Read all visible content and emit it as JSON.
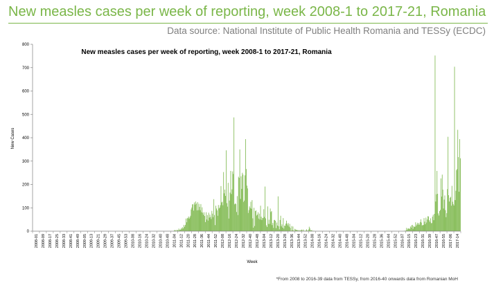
{
  "header": {
    "title": "New measles cases per week of reporting, week 2008-1 to 2017-21, Romania",
    "source": "Data source: National Institute of Public Health Romania and TESSy (ECDC)"
  },
  "footnote": "*From 2008 to 2016-39 data from TESSy, from 2016-40 onwards data from Romanian MoH",
  "colors": {
    "title": "#7ab648",
    "bars": "#7ab648",
    "axis": "#808080",
    "source": "#7f7f7f"
  },
  "chart_data": {
    "type": "bar",
    "title": "New measles cases per week of reporting, week 2008-1 to 2017-21, Romania",
    "xlabel": "Week",
    "ylabel": "New Cases",
    "ylim": [
      0,
      800
    ],
    "yticks": [
      0,
      100,
      200,
      300,
      400,
      500,
      600,
      700,
      800
    ],
    "grid": false,
    "legend": "none",
    "x_start": "2008-01",
    "x_end": "2017-21",
    "x_tick_labels": [
      "2008-01",
      "2008-09",
      "2008-17",
      "2008-25",
      "2008-33",
      "2008-41",
      "2008-49",
      "2009-05",
      "2009-13",
      "2009-21",
      "2009-29",
      "2009-37",
      "2009-45",
      "2009-53",
      "2010-08",
      "2010-16",
      "2010-24",
      "2010-32",
      "2010-40",
      "2010-48",
      "2011-04",
      "2011-12",
      "2011-20",
      "2011-28",
      "2011-36",
      "2011-44",
      "2011-52",
      "2012-08",
      "2012-16",
      "2012-24",
      "2012-32",
      "2012-40",
      "2012-48",
      "2013-04",
      "2013-12",
      "2013-20",
      "2013-28",
      "2013-36",
      "2013-44",
      "2013-52",
      "2014-08",
      "2014-16",
      "2014-24",
      "2014-32",
      "2014-40",
      "2014-48",
      "2015-04",
      "2015-12",
      "2015-20",
      "2015-28",
      "2015-36",
      "2015-44",
      "2015-52",
      "2016-07",
      "2016-15",
      "2016-23",
      "2016-31",
      "2016-39",
      "2016-47",
      "2016-55",
      "2017-06",
      "2017-14"
    ],
    "series": [
      {
        "values": [
          0,
          0,
          0,
          0,
          0,
          0,
          0,
          0,
          0,
          0,
          0,
          0,
          0,
          0,
          0,
          0,
          0,
          0,
          0,
          0,
          0,
          0,
          0,
          0,
          0,
          0,
          0,
          0,
          0,
          0,
          0,
          0,
          0,
          0,
          0,
          0,
          0,
          0,
          0,
          0,
          0,
          0,
          0,
          0,
          0,
          0,
          0,
          0,
          0,
          0,
          0,
          0,
          0,
          0,
          0,
          0,
          0,
          0,
          0,
          0,
          0,
          0,
          0,
          0,
          0,
          0,
          0,
          0,
          0,
          0,
          0,
          0,
          0,
          0,
          0,
          0,
          0,
          0,
          0,
          0,
          0,
          0,
          0,
          0,
          0,
          0,
          0,
          0,
          0,
          0,
          0,
          0,
          0,
          0,
          0,
          0,
          0,
          0,
          0,
          0,
          0,
          0,
          0,
          0,
          0,
          0,
          0,
          0,
          0,
          0,
          0,
          0,
          0,
          0,
          0,
          0,
          0,
          0,
          0,
          0,
          0,
          0,
          0,
          0,
          0,
          0,
          0,
          0,
          0,
          0,
          0,
          0,
          0,
          0,
          0,
          0,
          0,
          0,
          0,
          0,
          0,
          0,
          0,
          0,
          0,
          0,
          0,
          0,
          0,
          0,
          0,
          0,
          0,
          0,
          0,
          0,
          0,
          0,
          0,
          0,
          0,
          0,
          0,
          0,
          0,
          0,
          0,
          0,
          0,
          0,
          0,
          0,
          0,
          0,
          0,
          0,
          0,
          0,
          0,
          0,
          0,
          0,
          0,
          0,
          0,
          0,
          0,
          0,
          0,
          0,
          0,
          0,
          0,
          0,
          0,
          0,
          0,
          0,
          0,
          0,
          0,
          0,
          0,
          0,
          0,
          0,
          0,
          0,
          0,
          0,
          0,
          0,
          0,
          0,
          0,
          0,
          0,
          1,
          3,
          5,
          3,
          1,
          6,
          4,
          3,
          11,
          4,
          7,
          7,
          14,
          10,
          17,
          12,
          27,
          19,
          27,
          54,
          38,
          55,
          57,
          63,
          53,
          59,
          66,
          93,
          101,
          115,
          115,
          88,
          123,
          114,
          127,
          118,
          89,
          124,
          90,
          117,
          104,
          90,
          116,
          81,
          102,
          79,
          70,
          81,
          65,
          39,
          81,
          50,
          69,
          45,
          79,
          58,
          71,
          61,
          52,
          87,
          75,
          60,
          137,
          69,
          26,
          109,
          97,
          89,
          66,
          112,
          97,
          101,
          111,
          193,
          123,
          126,
          111,
          253,
          162,
          178,
          151,
          346,
          120,
          105,
          207,
          54,
          131,
          165,
          258,
          159,
          179,
          256,
          245,
          487,
          115,
          119,
          116,
          82,
          150,
          69,
          233,
          228,
          350,
          138,
          235,
          181,
          250,
          242,
          125,
          131,
          239,
          394,
          266,
          195,
          183,
          78,
          90,
          106,
          99,
          126,
          96,
          133,
          55,
          15,
          100,
          22,
          86,
          89,
          67,
          71,
          81,
          54,
          75,
          50,
          109,
          62,
          48,
          57,
          56,
          94,
          61,
          191,
          55,
          25,
          18,
          106,
          31,
          49,
          31,
          97,
          82,
          86,
          26,
          35,
          14,
          48,
          48,
          44,
          13,
          37,
          24,
          149,
          21,
          8,
          48,
          66,
          21,
          29,
          15,
          56,
          11,
          24,
          23,
          32,
          45,
          33,
          25,
          34,
          19,
          31,
          14,
          1,
          22,
          4,
          20,
          3,
          1,
          10,
          7,
          5,
          6,
          4,
          2,
          5,
          2,
          3,
          3,
          7,
          5,
          0,
          7,
          2,
          1,
          1,
          3,
          8,
          3,
          1,
          7,
          19,
          12,
          4,
          3,
          5,
          1,
          0,
          2,
          0,
          0,
          0,
          0,
          0,
          0,
          0,
          0,
          0,
          0,
          0,
          0,
          0,
          0,
          0,
          0,
          0,
          0,
          0,
          0,
          0,
          0,
          0,
          0,
          0,
          0,
          0,
          0,
          0,
          0,
          0,
          0,
          0,
          0,
          0,
          0,
          0,
          0,
          0,
          0,
          0,
          0,
          0,
          0,
          0,
          0,
          0,
          0,
          0,
          0,
          0,
          0,
          0,
          0,
          0,
          0,
          0,
          0,
          0,
          0,
          0,
          0,
          0,
          0,
          0,
          0,
          0,
          0,
          0,
          0,
          0,
          0,
          0,
          0,
          0,
          0,
          0,
          0,
          0,
          0,
          0,
          0,
          0,
          0,
          0,
          0,
          0,
          0,
          0,
          0,
          0,
          0,
          0,
          0,
          0,
          0,
          0,
          0,
          0,
          0,
          0,
          0,
          0,
          0,
          0,
          0,
          0,
          0,
          0,
          0,
          0,
          0,
          0,
          0,
          0,
          0,
          0,
          0,
          0,
          0,
          0,
          0,
          0,
          0,
          0,
          0,
          0,
          0,
          0,
          0,
          0,
          0,
          0,
          0,
          0,
          0,
          0,
          0,
          1,
          2,
          1,
          3,
          14,
          5,
          11,
          11,
          12,
          9,
          20,
          15,
          25,
          27,
          10,
          22,
          19,
          18,
          38,
          23,
          29,
          36,
          28,
          35,
          28,
          39,
          51,
          37,
          24,
          27,
          26,
          56,
          41,
          30,
          58,
          37,
          50,
          64,
          63,
          47,
          40,
          55,
          34,
          35,
          62,
          70,
          47,
          74,
          752,
          127,
          158,
          258,
          160,
          76,
          67,
          86,
          91,
          226,
          148,
          242,
          178,
          97,
          135,
          153,
          90,
          60,
          77,
          180,
          404,
          154,
          127,
          143,
          147,
          109,
          194,
          126,
          116,
          110,
          704,
          133,
          173,
          261,
          266,
          434,
          317,
          169,
          394,
          312
        ]
      }
    ]
  }
}
